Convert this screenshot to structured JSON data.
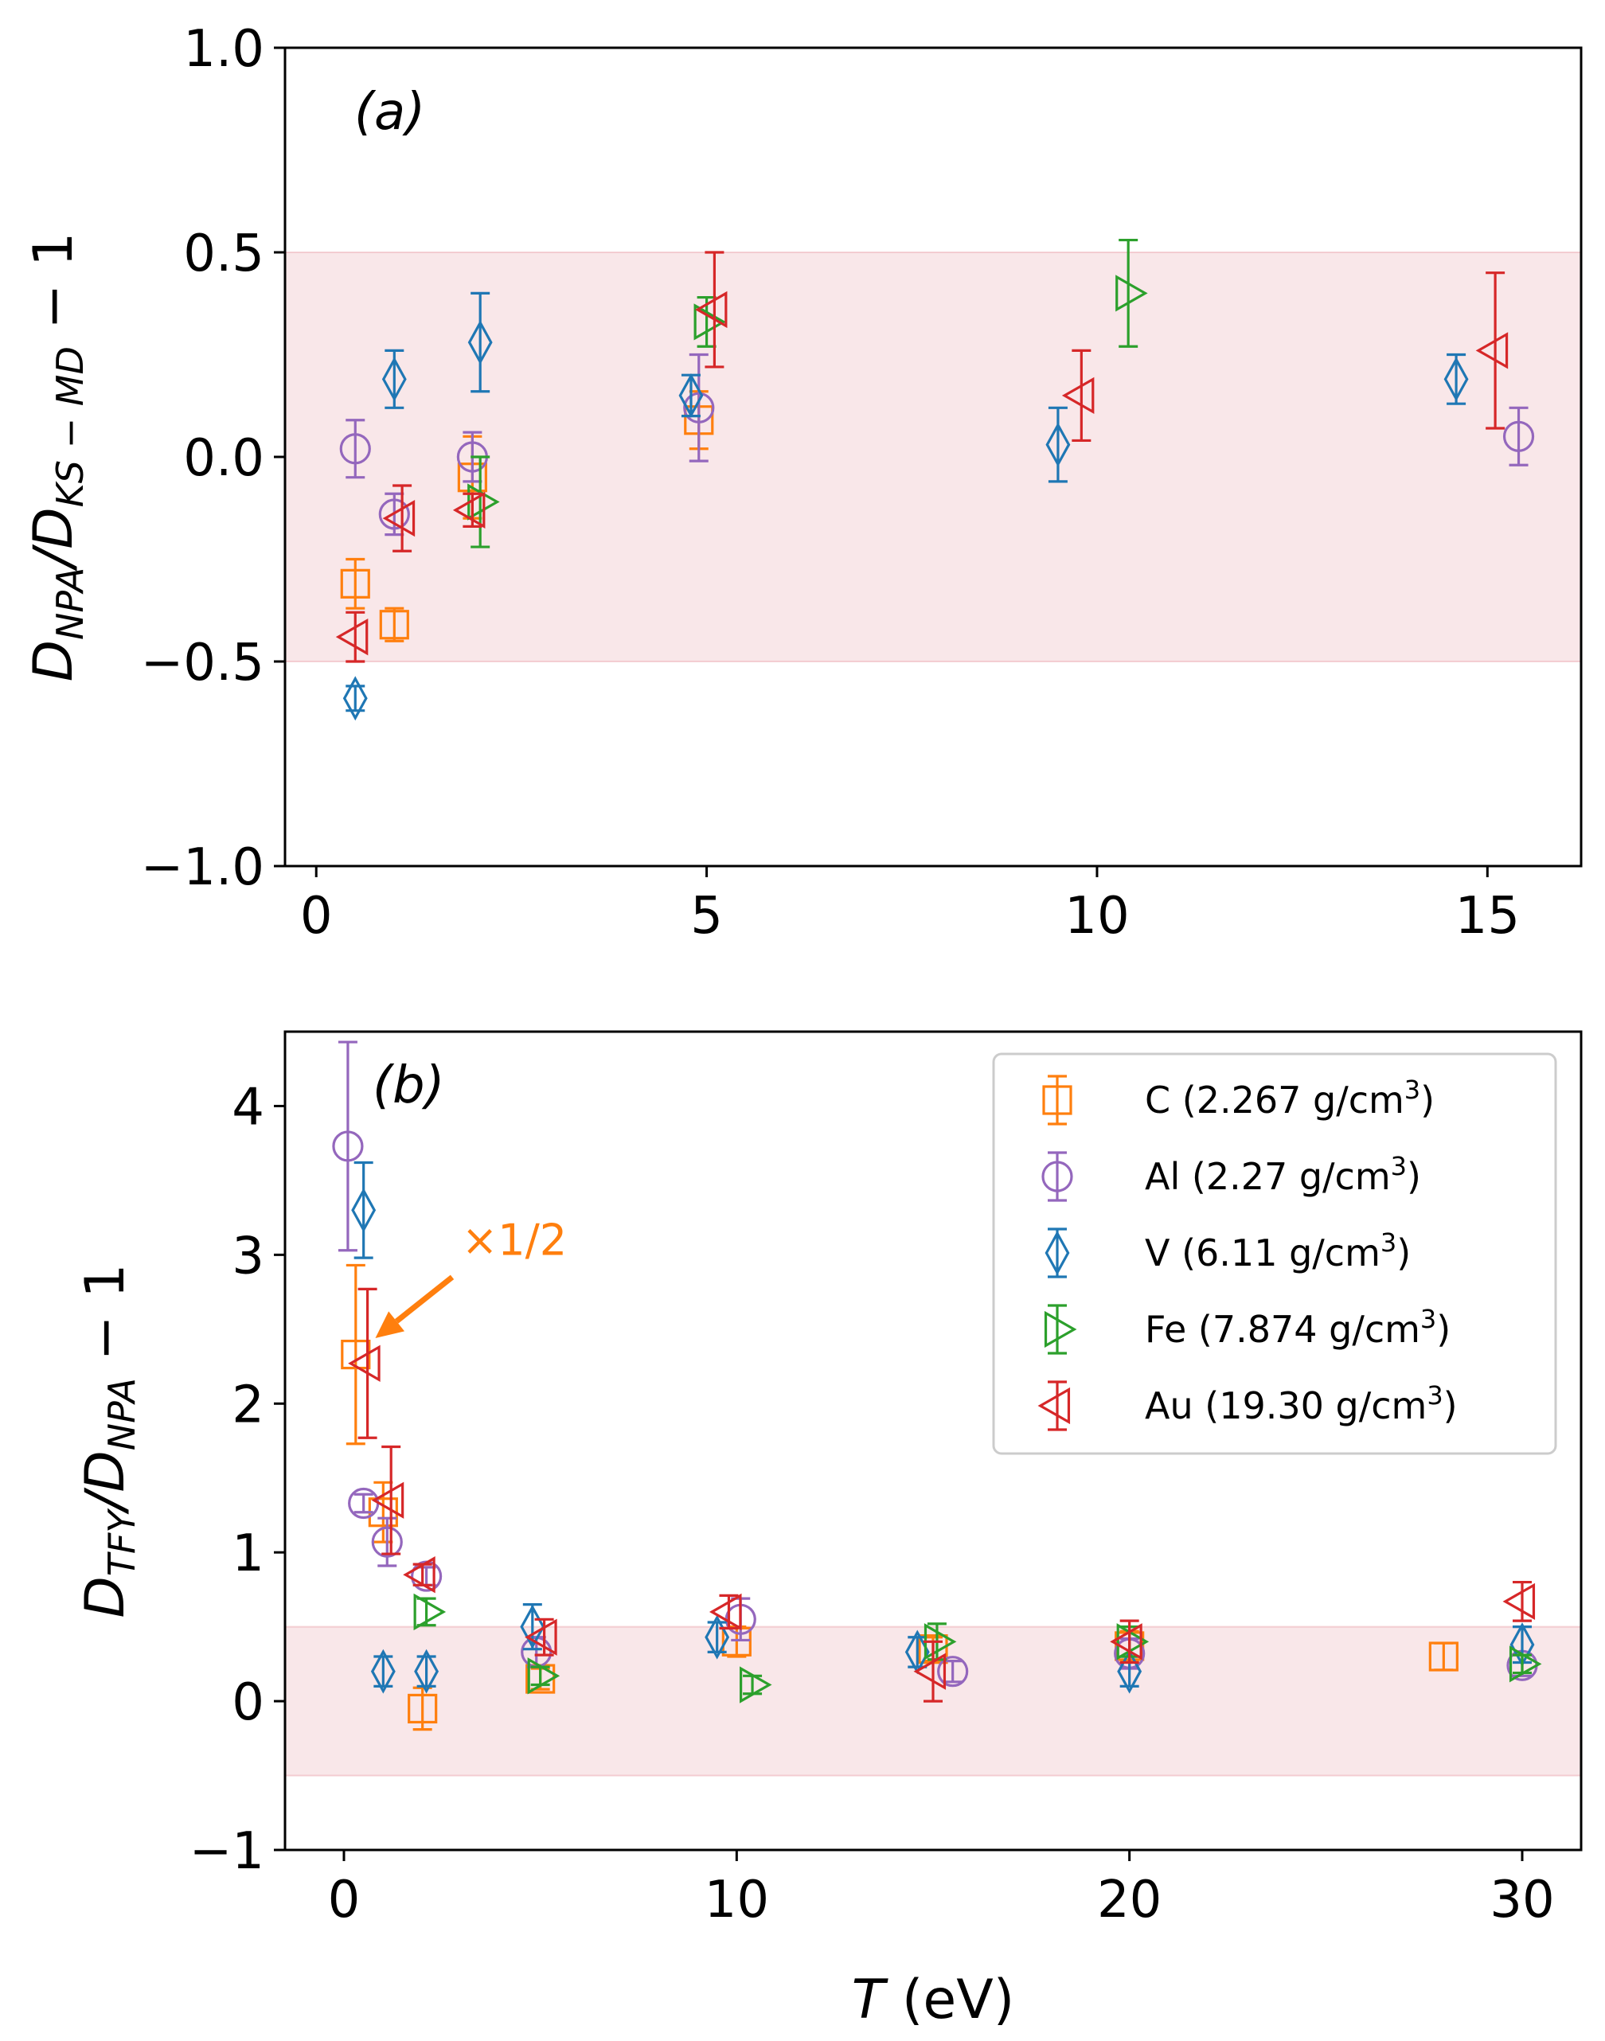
{
  "chart_data": [
    {
      "type": "scatter",
      "panel_label": "(a)",
      "xlabel": "",
      "ylabel": "D_NPA/D_KS-MD − 1",
      "xlim": [
        -0.4,
        16.2
      ],
      "ylim": [
        -1.0,
        1.0
      ],
      "xticks": [
        "0",
        "5",
        "10",
        "15"
      ],
      "xtick_values": [
        0,
        5,
        10,
        15
      ],
      "yticks": [
        "−1.0",
        "−0.5",
        "0.0",
        "0.5",
        "1.0"
      ],
      "ytick_values": [
        -1.0,
        -0.5,
        0.0,
        0.5,
        1.0
      ],
      "shaded_band": [
        -0.5,
        0.5
      ],
      "series": [
        {
          "name": "C",
          "marker": "square",
          "color": "#ff7f0e",
          "x": [
            0.5,
            1.0,
            2.0,
            4.9
          ],
          "y": [
            -0.31,
            -0.41,
            -0.05,
            0.09
          ],
          "err": [
            0.06,
            0.04,
            0.1,
            0.07
          ]
        },
        {
          "name": "Al",
          "marker": "circle",
          "color": "#9467bd",
          "x": [
            0.5,
            1.0,
            2.0,
            4.9,
            15.4
          ],
          "y": [
            0.02,
            -0.14,
            0.0,
            0.12,
            0.05
          ],
          "err": [
            0.07,
            0.05,
            0.06,
            0.13,
            0.07
          ]
        },
        {
          "name": "V",
          "marker": "diamond",
          "color": "#1f77b4",
          "x": [
            0.5,
            1.0,
            2.1,
            4.8,
            9.5,
            14.6
          ],
          "y": [
            -0.59,
            0.19,
            0.28,
            0.15,
            0.03,
            0.19
          ],
          "err": [
            0.03,
            0.07,
            0.12,
            0.05,
            0.09,
            0.06
          ]
        },
        {
          "name": "Fe",
          "marker": "triangle-right",
          "color": "#2ca02c",
          "x": [
            2.1,
            5.0,
            10.4
          ],
          "y": [
            -0.11,
            0.33,
            0.4
          ],
          "err": [
            0.11,
            0.06,
            0.13
          ]
        },
        {
          "name": "Au",
          "marker": "triangle-left",
          "color": "#d62728",
          "x": [
            0.5,
            1.1,
            2.0,
            5.1,
            9.8,
            15.1
          ],
          "y": [
            -0.44,
            -0.15,
            -0.13,
            0.36,
            0.15,
            0.26
          ],
          "err": [
            0.06,
            0.08,
            0.04,
            0.14,
            0.11,
            0.19
          ]
        }
      ]
    },
    {
      "type": "scatter",
      "panel_label": "(b)",
      "xlabel": "T (eV)",
      "ylabel": "D_TFY/D_NPA − 1",
      "xlim": [
        -1.5,
        31.5
      ],
      "ylim": [
        -1.0,
        4.5
      ],
      "xticks": [
        "0",
        "10",
        "20",
        "30"
      ],
      "xtick_values": [
        0,
        10,
        20,
        30
      ],
      "yticks": [
        "−1",
        "0",
        "1",
        "2",
        "3",
        "4"
      ],
      "ytick_values": [
        -1,
        0,
        1,
        2,
        3,
        4
      ],
      "shaded_band": [
        -0.5,
        0.5
      ],
      "annotation": {
        "text": "×1/2",
        "color": "#ff7f0e",
        "text_at": [
          3.0,
          3.0
        ],
        "arrow_to": [
          0.8,
          2.44
        ]
      },
      "series": [
        {
          "name": "C",
          "marker": "square",
          "color": "#ff7f0e",
          "x": [
            0.3,
            1.0,
            2.0,
            5.0,
            10.0,
            15.0,
            20.0,
            28.0
          ],
          "y": [
            2.33,
            1.27,
            -0.05,
            0.15,
            0.4,
            0.35,
            0.37,
            0.3
          ],
          "err": [
            0.6,
            0.2,
            0.14,
            0.07,
            0.1,
            0.08,
            0.1,
            0.09
          ]
        },
        {
          "name": "Al",
          "marker": "circle",
          "color": "#9467bd",
          "x": [
            0.1,
            0.5,
            1.1,
            2.1,
            4.9,
            10.1,
            15.5,
            20.0,
            30.0
          ],
          "y": [
            3.73,
            1.33,
            1.07,
            0.84,
            0.33,
            0.55,
            0.2,
            0.32,
            0.24
          ],
          "err": [
            0.7,
            0.06,
            0.16,
            0.06,
            0.1,
            0.14,
            0.07,
            0.1,
            0.07
          ]
        },
        {
          "name": "V",
          "marker": "diamond",
          "color": "#1f77b4",
          "x": [
            0.5,
            1.0,
            2.1,
            4.8,
            9.5,
            14.6,
            20.0,
            30.0
          ],
          "y": [
            3.3,
            0.2,
            0.2,
            0.5,
            0.43,
            0.33,
            0.2,
            0.38
          ],
          "err": [
            0.32,
            0.1,
            0.1,
            0.15,
            0.1,
            0.1,
            0.1,
            0.12
          ]
        },
        {
          "name": "Fe",
          "marker": "triangle-right",
          "color": "#2ca02c",
          "x": [
            2.1,
            5.0,
            10.4,
            15.1,
            20.0,
            30.0
          ],
          "y": [
            0.6,
            0.17,
            0.11,
            0.4,
            0.4,
            0.25
          ],
          "err": [
            0.09,
            0.06,
            0.06,
            0.12,
            0.1,
            0.06
          ]
        },
        {
          "name": "Au",
          "marker": "triangle-left",
          "color": "#d62728",
          "x": [
            0.6,
            1.2,
            2.0,
            5.1,
            9.8,
            15.0,
            20.0,
            30.0
          ],
          "y": [
            2.27,
            1.35,
            0.85,
            0.43,
            0.6,
            0.2,
            0.4,
            0.67
          ],
          "err": [
            0.5,
            0.36,
            0.07,
            0.12,
            0.11,
            0.2,
            0.14,
            0.13
          ]
        }
      ]
    }
  ],
  "legend": {
    "position": "upper-right of panel (b)",
    "entries": [
      {
        "label": "C (2.267 g/cm",
        "sup": "3",
        "close": ")",
        "marker": "square",
        "color": "#ff7f0e"
      },
      {
        "label": "Al (2.27 g/cm",
        "sup": "3",
        "close": ")",
        "marker": "circle",
        "color": "#9467bd"
      },
      {
        "label": "V (6.11 g/cm",
        "sup": "3",
        "close": ")",
        "marker": "diamond",
        "color": "#1f77b4"
      },
      {
        "label": "Fe (7.874 g/cm",
        "sup": "3",
        "close": ")",
        "marker": "triangle-right",
        "color": "#2ca02c"
      },
      {
        "label": "Au (19.30 g/cm",
        "sup": "3",
        "close": ")",
        "marker": "triangle-left",
        "color": "#d62728"
      }
    ]
  },
  "labels": {
    "ylabel_a_main": "D",
    "ylabel_a_sub1": "NPA",
    "ylabel_a_slash": "/D",
    "ylabel_a_sub2": "KS − MD",
    "ylabel_a_tail": " − 1",
    "ylabel_b_main": "D",
    "ylabel_b_sub1": "TFY",
    "ylabel_b_slash": "/D",
    "ylabel_b_sub2": "NPA",
    "ylabel_b_tail": " − 1",
    "xlabel_b_var": "T",
    "xlabel_b_unit": " (eV)"
  }
}
